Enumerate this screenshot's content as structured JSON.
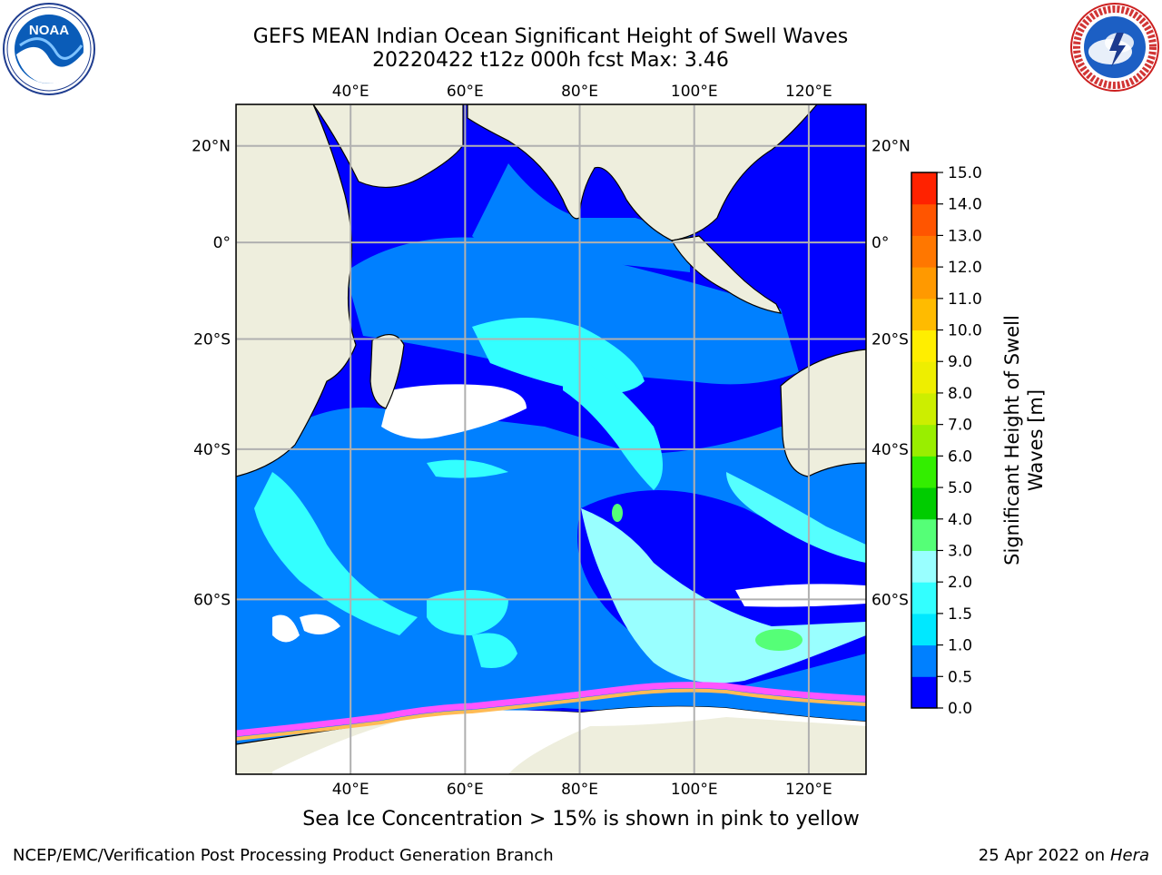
{
  "header": {
    "title_line1": "GEFS MEAN Indian Ocean Significant Height of Swell Waves",
    "title_line2": "20220422 t12z 000h fcst   Max: 3.46"
  },
  "logos": {
    "left": "NOAA",
    "right": "NATIONAL WEATHER SERVICE"
  },
  "map": {
    "lon_ticks": [
      "40°E",
      "60°E",
      "80°E",
      "100°E",
      "120°E"
    ],
    "lat_ticks_left": [
      "20°N",
      "0°",
      "20°S",
      "40°S",
      "60°S"
    ],
    "lat_ticks_right": [
      "20°N",
      "0°",
      "20°S",
      "40°S",
      "60°S"
    ],
    "lon_range": [
      20,
      130
    ],
    "lat_range": [
      -74,
      28
    ],
    "colors": {
      "land": "#eeeedd",
      "ocean_low": "#0000ff",
      "ocean_mid": "#0080ff",
      "swell_high": "#00ffff",
      "swell_higher": "#55ffff",
      "swell_peak": "#55ff77",
      "ice_pink": "#ff55ff",
      "ice_yellow": "#ffbb55",
      "grid": "#b0b0b0"
    }
  },
  "colorbar": {
    "label": "Significant Height of Swell Waves [m]",
    "ticks": [
      "0.0",
      "0.5",
      "1.0",
      "1.5",
      "2.0",
      "3.0",
      "4.0",
      "5.0",
      "6.0",
      "7.0",
      "8.0",
      "9.0",
      "10.0",
      "11.0",
      "12.0",
      "13.0",
      "14.0",
      "15.0"
    ],
    "colors": [
      "#0000ff",
      "#0080ff",
      "#00e8ff",
      "#33ffff",
      "#99ffff",
      "#55ff77",
      "#00cc00",
      "#33ee00",
      "#99ee00",
      "#ccee00",
      "#eeee00",
      "#ffee00",
      "#ffbb00",
      "#ff9900",
      "#ff7700",
      "#ff5500",
      "#ff2200"
    ]
  },
  "footer": {
    "note": "Sea Ice Concentration > 15% is shown in pink to yellow",
    "credit": "NCEP/EMC/Verification Post Processing Product Generation Branch",
    "date": "25 Apr 2022 on",
    "system": "Hera"
  }
}
